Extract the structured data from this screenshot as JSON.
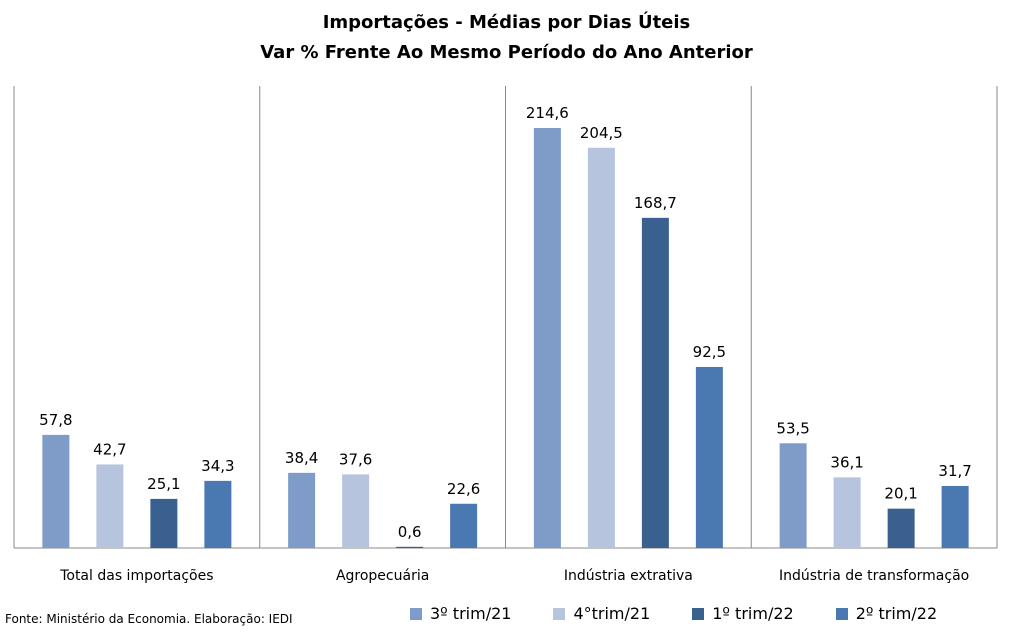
{
  "title_line1": "Importações - Médias por Dias Úteis",
  "title_line2": "Var % Frente Ao Mesmo Período do Ano Anterior",
  "footer": "Fonte: Ministério da Economia. Elaboração: IEDI",
  "colors": [
    "#7f9cc8",
    "#b6c4de",
    "#3a6090",
    "#4a78b0"
  ],
  "chart_data": {
    "type": "bar",
    "categories": [
      "Total das importações",
      "Agropecuária",
      "Indústria extrativa",
      "Indústria de transformação"
    ],
    "series": [
      {
        "name": "3º trim/21",
        "values": [
          57.8,
          38.4,
          214.6,
          53.5
        ],
        "labels": [
          "57,8",
          "38,4",
          "214,6",
          "53,5"
        ]
      },
      {
        "name": "4°trim/21",
        "values": [
          42.7,
          37.6,
          204.5,
          36.1
        ],
        "labels": [
          "42,7",
          "37,6",
          "204,5",
          "36,1"
        ]
      },
      {
        "name": "1º trim/22",
        "values": [
          25.1,
          0.6,
          168.7,
          20.1
        ],
        "labels": [
          "25,1",
          "0,6",
          "168,7",
          "20,1"
        ]
      },
      {
        "name": "2º trim/22",
        "values": [
          34.3,
          22.6,
          92.5,
          31.7
        ],
        "labels": [
          "34,3",
          "22,6",
          "92,5",
          "31,7"
        ]
      }
    ],
    "ylim": [
      0,
      250
    ],
    "legend": "bottom",
    "grid": false
  }
}
